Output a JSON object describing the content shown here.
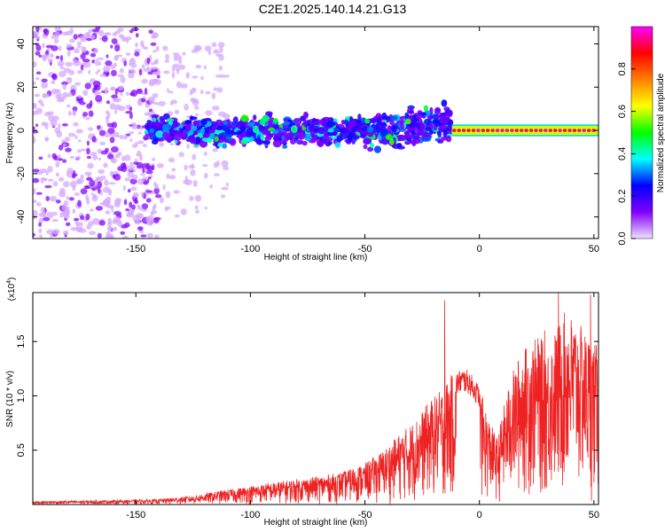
{
  "figure_title": "C2E1.2025.140.14.21.G13",
  "chart_data": [
    {
      "type": "heatmap",
      "xlabel": "Height of straight line (km)",
      "ylabel": "Frequency (Hz)",
      "xlim": [
        -195,
        52
      ],
      "ylim": [
        -50,
        48
      ],
      "x_ticks": [
        "-150",
        "-100",
        "-50",
        "0",
        "50"
      ],
      "x_tick_values": [
        -150,
        -100,
        -50,
        0,
        50
      ],
      "y_ticks": [
        "-40",
        "-20",
        "0",
        "20",
        "40"
      ],
      "y_tick_values": [
        -40,
        -20,
        0,
        20,
        40
      ],
      "colorbar": {
        "label": "Normalized spectral amplitude",
        "range": [
          0,
          1
        ],
        "ticks": [
          "0.0",
          "0.2",
          "0.4",
          "0.6",
          "0.8"
        ],
        "tick_values": [
          0.0,
          0.2,
          0.4,
          0.6,
          0.8
        ],
        "colors": [
          "#f0e0ff",
          "#8000ff",
          "#0000ff",
          "#00ffff",
          "#00ff00",
          "#ffff00",
          "#ff8000",
          "#ff0000",
          "#ff00ff"
        ]
      },
      "regions": [
        {
          "x_range": [
            -195,
            -140
          ],
          "freq_range": [
            -50,
            48
          ],
          "amplitude": 0.12,
          "desc_level": "noise"
        },
        {
          "x_range": [
            -140,
            -110
          ],
          "freq_range": [
            -40,
            40
          ],
          "amplitude": 0.05,
          "desc_level": "faint"
        },
        {
          "x_range": [
            -145,
            -12
          ],
          "freq_range": [
            -10,
            10
          ],
          "amplitude": 0.35,
          "desc_level": "band"
        },
        {
          "x_range": [
            -12,
            52
          ],
          "freq_range": [
            -1.5,
            1.5
          ],
          "amplitude": 0.95,
          "desc_level": "peak"
        }
      ]
    },
    {
      "type": "line",
      "xlabel": "Height of straight line (km)",
      "ylabel": "SNR (10 * v/v)",
      "y_multiplier": "(x10",
      "y_multiplier_exp": "4",
      "y_multiplier_close": ")",
      "xlim": [
        -195,
        52
      ],
      "ylim": [
        0,
        1.95
      ],
      "x_ticks": [
        "-150",
        "-100",
        "-50",
        "0",
        "50"
      ],
      "x_tick_values": [
        -150,
        -100,
        -50,
        0,
        50
      ],
      "y_ticks": [
        "0.5",
        "1.0",
        "1.5"
      ],
      "y_tick_values": [
        0.5,
        1.0,
        1.5
      ],
      "color": "#ee2222",
      "envelope": {
        "x": [
          -195,
          -160,
          -140,
          -125,
          -115,
          -100,
          -85,
          -70,
          -60,
          -50,
          -42,
          -35,
          -28,
          -22,
          -17,
          -14,
          -12,
          -10,
          -8,
          -6,
          -4,
          -2,
          0,
          2,
          4,
          6,
          8,
          10,
          14,
          18,
          22,
          26,
          30,
          34,
          38,
          42,
          46,
          50,
          52
        ],
        "y": [
          0.03,
          0.04,
          0.05,
          0.08,
          0.12,
          0.17,
          0.22,
          0.26,
          0.3,
          0.38,
          0.5,
          0.65,
          0.78,
          0.95,
          1.05,
          1.15,
          1.2,
          1.22,
          1.25,
          1.25,
          1.22,
          1.15,
          1.1,
          0.95,
          0.8,
          0.7,
          0.6,
          0.85,
          1.2,
          1.4,
          1.5,
          1.55,
          1.45,
          1.65,
          1.8,
          1.7,
          1.6,
          1.5,
          1.45
        ]
      },
      "spikes": [
        {
          "x": -15.2,
          "y": 1.88
        },
        {
          "x": 34.5,
          "y": 1.95
        },
        {
          "x": 48.5,
          "y": 1.93
        },
        {
          "x": 28.5,
          "y": 1.6
        }
      ]
    }
  ]
}
